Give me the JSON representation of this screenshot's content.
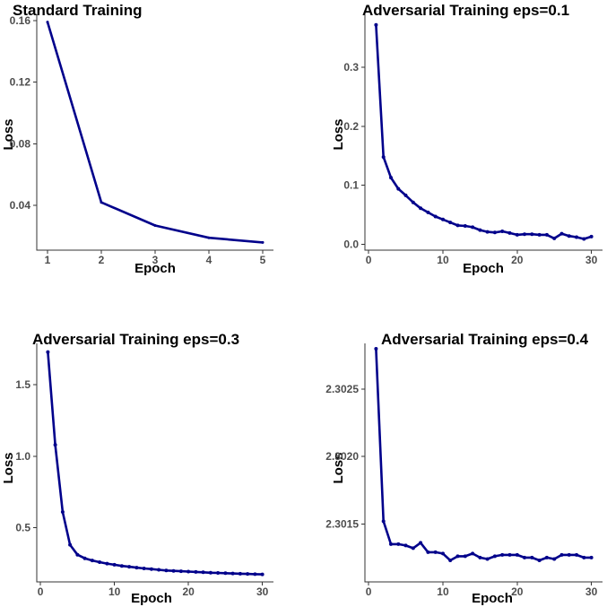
{
  "chart_data": [
    {
      "type": "line",
      "title": "Standard Training",
      "xlabel": "Epoch",
      "ylabel": "Loss",
      "xlim": [
        0.8,
        5.2
      ],
      "ylim": [
        0.011,
        0.164
      ],
      "xticks": [
        1,
        2,
        3,
        4,
        5
      ],
      "yticks": [
        0.04,
        0.08,
        0.12,
        0.16
      ],
      "ytick_labels": [
        "0.04",
        "0.08",
        "0.12",
        "0.16"
      ],
      "grid": false,
      "color": "#00008b",
      "markers": false,
      "x": [
        1,
        2,
        3,
        4,
        5
      ],
      "values": [
        0.159,
        0.042,
        0.027,
        0.019,
        0.016
      ]
    },
    {
      "type": "line",
      "title": "Adversarial Training eps=0.1",
      "xlabel": "Epoch",
      "ylabel": "Loss",
      "xlim": [
        -0.5,
        31.5
      ],
      "ylim": [
        -0.01,
        0.39
      ],
      "xticks": [
        0,
        10,
        20,
        30
      ],
      "yticks": [
        0.0,
        0.1,
        0.2,
        0.3
      ],
      "ytick_labels": [
        "0.0",
        "0.1",
        "0.2",
        "0.3"
      ],
      "grid": false,
      "color": "#00008b",
      "markers": true,
      "x": [
        1,
        2,
        3,
        4,
        5,
        6,
        7,
        8,
        9,
        10,
        11,
        12,
        13,
        14,
        15,
        16,
        17,
        18,
        19,
        20,
        21,
        22,
        23,
        24,
        25,
        26,
        27,
        28,
        29,
        30
      ],
      "values": [
        0.372,
        0.148,
        0.113,
        0.094,
        0.083,
        0.071,
        0.061,
        0.054,
        0.047,
        0.042,
        0.037,
        0.032,
        0.031,
        0.029,
        0.024,
        0.021,
        0.02,
        0.022,
        0.019,
        0.016,
        0.017,
        0.017,
        0.016,
        0.016,
        0.01,
        0.018,
        0.014,
        0.012,
        0.009,
        0.013
      ]
    },
    {
      "type": "line",
      "title": "Adversarial Training eps=0.3",
      "xlabel": "Epoch",
      "ylabel": "Loss",
      "xlim": [
        -0.5,
        31.5
      ],
      "ylim": [
        0.12,
        1.79
      ],
      "xticks": [
        0,
        10,
        20,
        30
      ],
      "yticks": [
        0.5,
        1.0,
        1.5
      ],
      "ytick_labels": [
        "0.5",
        "1.0",
        "1.5"
      ],
      "grid": false,
      "color": "#00008b",
      "markers": true,
      "x": [
        1,
        2,
        3,
        4,
        5,
        6,
        7,
        8,
        9,
        10,
        11,
        12,
        13,
        14,
        15,
        16,
        17,
        18,
        19,
        20,
        21,
        22,
        23,
        24,
        25,
        26,
        27,
        28,
        29,
        30
      ],
      "values": [
        1.73,
        1.08,
        0.61,
        0.38,
        0.31,
        0.285,
        0.27,
        0.258,
        0.248,
        0.24,
        0.232,
        0.226,
        0.22,
        0.214,
        0.21,
        0.205,
        0.2,
        0.197,
        0.195,
        0.192,
        0.19,
        0.187,
        0.184,
        0.183,
        0.181,
        0.179,
        0.177,
        0.176,
        0.174,
        0.173
      ]
    },
    {
      "type": "line",
      "title": "Adversarial Training eps=0.4",
      "xlabel": "Epoch",
      "ylabel": "Loss",
      "xlim": [
        -0.5,
        31.5
      ],
      "ylim": [
        2.30107,
        2.30284
      ],
      "xticks": [
        0,
        10,
        20,
        30
      ],
      "yticks": [
        2.3015,
        2.302,
        2.3025
      ],
      "ytick_labels": [
        "2.3015",
        "2.3020",
        "2.3025"
      ],
      "grid": false,
      "color": "#00008b",
      "markers": true,
      "x": [
        1,
        2,
        3,
        4,
        5,
        6,
        7,
        8,
        9,
        10,
        11,
        12,
        13,
        14,
        15,
        16,
        17,
        18,
        19,
        20,
        21,
        22,
        23,
        24,
        25,
        26,
        27,
        28,
        29,
        30
      ],
      "values": [
        2.3028,
        2.30152,
        2.30135,
        2.30135,
        2.30134,
        2.30132,
        2.30136,
        2.30129,
        2.30129,
        2.30128,
        2.30123,
        2.30126,
        2.30126,
        2.30128,
        2.30125,
        2.30124,
        2.30126,
        2.30127,
        2.30127,
        2.30127,
        2.30125,
        2.30125,
        2.30123,
        2.30125,
        2.30124,
        2.30127,
        2.30127,
        2.30127,
        2.30125,
        2.30125
      ]
    }
  ]
}
